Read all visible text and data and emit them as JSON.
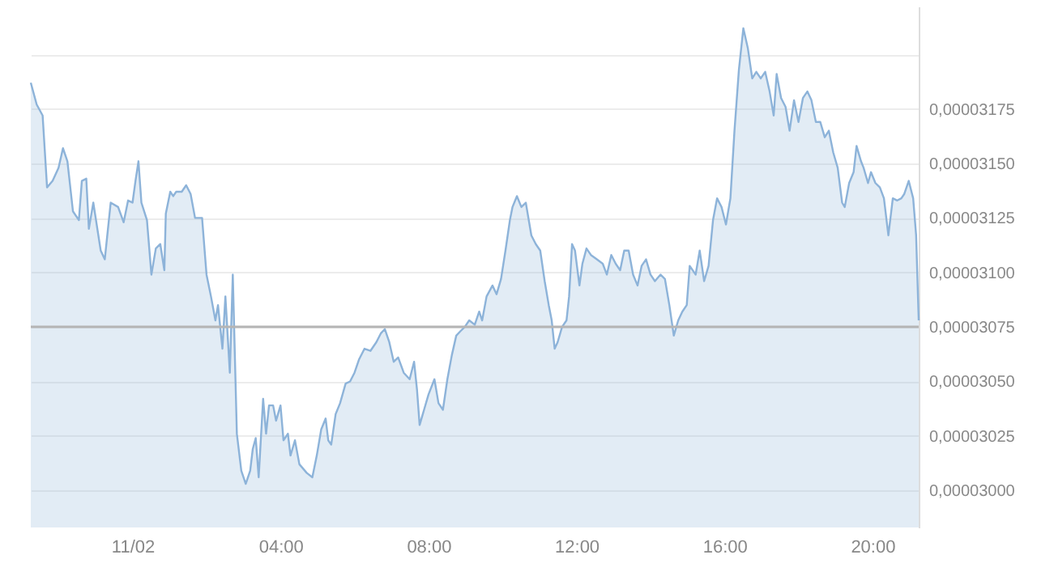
{
  "chart_data": {
    "type": "area",
    "x": [
      -2.75,
      -2.59,
      -2.43,
      -2.31,
      -2.16,
      -2.0,
      -1.88,
      -1.76,
      -1.61,
      -1.45,
      -1.37,
      -1.25,
      -1.18,
      -1.06,
      -0.86,
      -0.75,
      -0.59,
      -0.39,
      -0.24,
      -0.12,
      0,
      0.08,
      0.16,
      0.24,
      0.39,
      0.51,
      0.63,
      0.75,
      0.86,
      0.9,
      1.02,
      1.1,
      1.18,
      1.33,
      1.45,
      1.57,
      1.69,
      1.88,
      2.0,
      2.12,
      2.24,
      2.31,
      2.43,
      2.51,
      2.63,
      2.71,
      2.82,
      2.94,
      3.06,
      3.18,
      3.25,
      3.33,
      3.41,
      3.53,
      3.61,
      3.69,
      3.8,
      3.88,
      4.0,
      4.08,
      4.2,
      4.27,
      4.39,
      4.51,
      4.71,
      4.86,
      4.98,
      5.1,
      5.22,
      5.29,
      5.37,
      5.49,
      5.61,
      5.76,
      5.88,
      6.0,
      6.12,
      6.27,
      6.43,
      6.59,
      6.71,
      6.82,
      6.94,
      7.06,
      7.18,
      7.33,
      7.49,
      7.61,
      7.69,
      7.76,
      7.88,
      8.0,
      8.16,
      8.27,
      8.39,
      8.51,
      8.63,
      8.75,
      8.86,
      8.98,
      9.1,
      9.25,
      9.37,
      9.45,
      9.57,
      9.73,
      9.84,
      9.96,
      10.08,
      10.2,
      10.27,
      10.39,
      10.51,
      10.63,
      10.78,
      10.9,
      11.02,
      11.14,
      11.25,
      11.33,
      11.41,
      11.49,
      11.61,
      11.73,
      11.8,
      11.88,
      11.96,
      12.08,
      12.16,
      12.27,
      12.39,
      12.55,
      12.71,
      12.82,
      12.94,
      13.06,
      13.18,
      13.29,
      13.41,
      13.53,
      13.65,
      13.76,
      13.88,
      14.0,
      14.12,
      14.27,
      14.39,
      14.51,
      14.63,
      14.75,
      14.86,
      14.98,
      15.06,
      15.22,
      15.33,
      15.45,
      15.57,
      15.69,
      15.8,
      15.92,
      16.04,
      16.16,
      16.27,
      16.39,
      16.51,
      16.63,
      16.75,
      16.86,
      16.98,
      17.1,
      17.22,
      17.33,
      17.41,
      17.53,
      17.65,
      17.76,
      17.88,
      18.0,
      18.12,
      18.24,
      18.35,
      18.47,
      18.59,
      18.71,
      18.82,
      18.94,
      19.06,
      19.18,
      19.25,
      19.37,
      19.49,
      19.57,
      19.69,
      19.76,
      19.88,
      19.96,
      20.08,
      20.2,
      20.31,
      20.43,
      20.55,
      20.67,
      20.78,
      20.86,
      20.98,
      21.1,
      21.18,
      21.25
    ],
    "series": [
      {
        "color": "#8db3d9",
        "values": [
          3.187e-05,
          3.177e-05,
          3.172e-05,
          3.139e-05,
          3.142e-05,
          3.148e-05,
          3.157e-05,
          3.151e-05,
          3.128e-05,
          3.124e-05,
          3.142e-05,
          3.143e-05,
          3.12e-05,
          3.132e-05,
          3.11e-05,
          3.106e-05,
          3.132e-05,
          3.13e-05,
          3.123e-05,
          3.133e-05,
          3.132e-05,
          3.142e-05,
          3.151e-05,
          3.132e-05,
          3.124e-05,
          3.099e-05,
          3.111e-05,
          3.113e-05,
          3.101e-05,
          3.127e-05,
          3.137e-05,
          3.135e-05,
          3.137e-05,
          3.137e-05,
          3.14e-05,
          3.136e-05,
          3.125e-05,
          3.125e-05,
          3.099e-05,
          3.089e-05,
          3.078e-05,
          3.085e-05,
          3.065e-05,
          3.089e-05,
          3.054e-05,
          3.099e-05,
          3.026e-05,
          3.009e-05,
          3.003e-05,
          3.009e-05,
          3.019e-05,
          3.024e-05,
          3.006e-05,
          3.042e-05,
          3.026e-05,
          3.039e-05,
          3.039e-05,
          3.032e-05,
          3.039e-05,
          3.023e-05,
          3.026e-05,
          3.016e-05,
          3.023e-05,
          3.012e-05,
          3.008e-05,
          3.006e-05,
          3.016e-05,
          3.028e-05,
          3.033e-05,
          3.023e-05,
          3.021e-05,
          3.035e-05,
          3.04e-05,
          3.049e-05,
          3.05e-05,
          3.054e-05,
          3.06e-05,
          3.065e-05,
          3.064e-05,
          3.068e-05,
          3.072e-05,
          3.074e-05,
          3.068e-05,
          3.059e-05,
          3.061e-05,
          3.054e-05,
          3.051e-05,
          3.059e-05,
          3.046e-05,
          3.03e-05,
          3.037e-05,
          3.044e-05,
          3.051e-05,
          3.04e-05,
          3.037e-05,
          3.051e-05,
          3.062e-05,
          3.071e-05,
          3.073e-05,
          3.075e-05,
          3.078e-05,
          3.076e-05,
          3.082e-05,
          3.078e-05,
          3.089e-05,
          3.094e-05,
          3.09e-05,
          3.097e-05,
          3.11e-05,
          3.124e-05,
          3.13e-05,
          3.135e-05,
          3.13e-05,
          3.132e-05,
          3.117e-05,
          3.113e-05,
          3.11e-05,
          3.096e-05,
          3.085e-05,
          3.078e-05,
          3.065e-05,
          3.068e-05,
          3.075e-05,
          3.078e-05,
          3.089e-05,
          3.113e-05,
          3.11e-05,
          3.094e-05,
          3.104e-05,
          3.111e-05,
          3.108e-05,
          3.106e-05,
          3.104e-05,
          3.099e-05,
          3.108e-05,
          3.104e-05,
          3.101e-05,
          3.11e-05,
          3.11e-05,
          3.099e-05,
          3.094e-05,
          3.103e-05,
          3.106e-05,
          3.099e-05,
          3.096e-05,
          3.099e-05,
          3.097e-05,
          3.085e-05,
          3.071e-05,
          3.078e-05,
          3.082e-05,
          3.085e-05,
          3.103e-05,
          3.099e-05,
          3.11e-05,
          3.096e-05,
          3.103e-05,
          3.124e-05,
          3.134e-05,
          3.13e-05,
          3.122e-05,
          3.134e-05,
          3.165e-05,
          3.193e-05,
          3.212e-05,
          3.203e-05,
          3.189e-05,
          3.192e-05,
          3.189e-05,
          3.192e-05,
          3.183e-05,
          3.172e-05,
          3.191e-05,
          3.18e-05,
          3.176e-05,
          3.165e-05,
          3.179e-05,
          3.169e-05,
          3.18e-05,
          3.183e-05,
          3.179e-05,
          3.169e-05,
          3.169e-05,
          3.162e-05,
          3.165e-05,
          3.155e-05,
          3.148e-05,
          3.132e-05,
          3.13e-05,
          3.141e-05,
          3.146e-05,
          3.158e-05,
          3.151e-05,
          3.148e-05,
          3.141e-05,
          3.146e-05,
          3.141e-05,
          3.139e-05,
          3.134e-05,
          3.117e-05,
          3.134e-05,
          3.133e-05,
          3.134e-05,
          3.136e-05,
          3.142e-05,
          3.134e-05,
          3.117e-05,
          3.078e-05
        ]
      }
    ],
    "xlim": [
      -2.75,
      21.25
    ],
    "xticks": [
      {
        "value": 0,
        "label": "11/02"
      },
      {
        "value": 4,
        "label": "04:00"
      },
      {
        "value": 8,
        "label": "08:00"
      },
      {
        "value": 12,
        "label": "12:00"
      },
      {
        "value": 16,
        "label": "16:00"
      },
      {
        "value": 20,
        "label": "20:00"
      }
    ],
    "ylim": [
      2.983e-05,
      3.222e-05
    ],
    "yticks": [
      {
        "value": 3e-05,
        "label": "0,00003000"
      },
      {
        "value": 3.025e-05,
        "label": "0,00003025"
      },
      {
        "value": 3.05e-05,
        "label": "0,00003050"
      },
      {
        "value": 3.075e-05,
        "label": "0,00003075"
      },
      {
        "value": 3.1e-05,
        "label": "0,00003100"
      },
      {
        "value": 3.125e-05,
        "label": "0,00003125"
      },
      {
        "value": 3.15e-05,
        "label": "0,00003150"
      },
      {
        "value": 3.175e-05,
        "label": "0,00003175"
      },
      {
        "value": 3.2e-05,
        "label": null
      }
    ],
    "grid": "y",
    "ref_lines": [
      {
        "axis": "y",
        "value": 3.075e-05,
        "color": "#b5b5b5"
      }
    ]
  }
}
